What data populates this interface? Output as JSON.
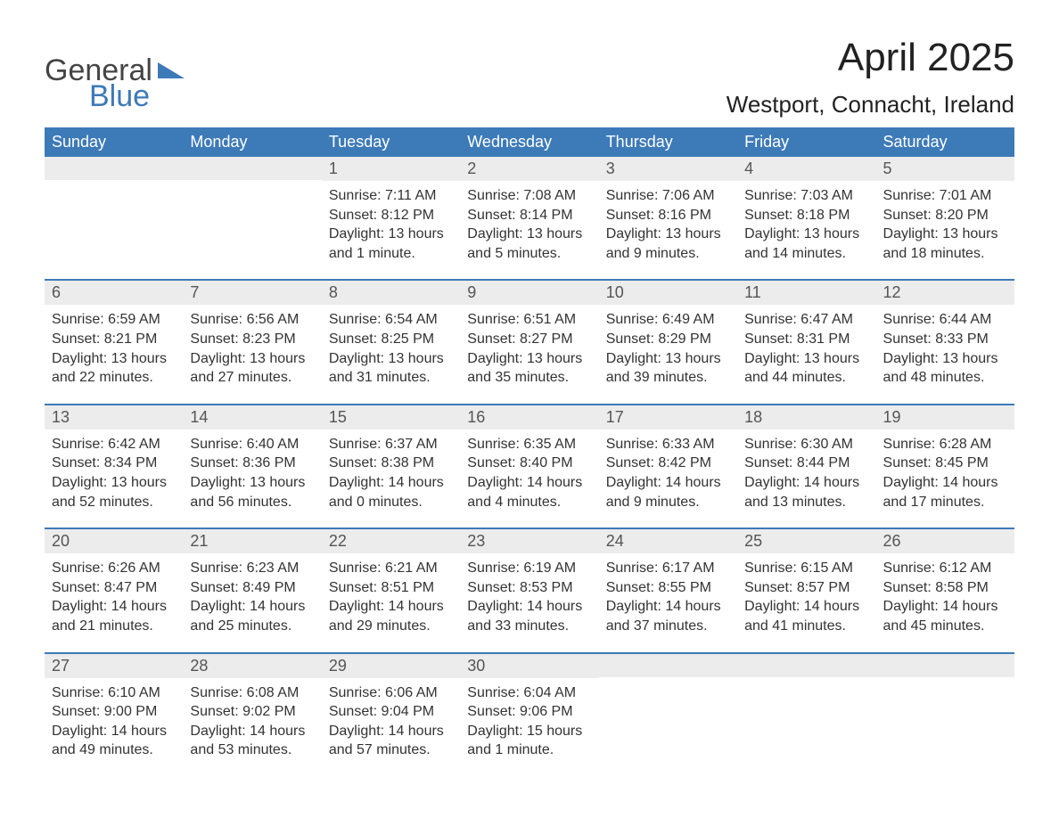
{
  "logo": {
    "word1": "General",
    "word2": "Blue"
  },
  "title": "April 2025",
  "location": "Westport, Connacht, Ireland",
  "colors": {
    "brand_blue": "#3d7ab8",
    "header_text": "#ffffff",
    "daynum_bg": "#ececec",
    "body_text": "#333333",
    "title_text": "#222222",
    "page_bg": "#ffffff"
  },
  "typography": {
    "month_title_fontsize": 44,
    "location_fontsize": 26,
    "dow_fontsize": 18,
    "daynum_fontsize": 18,
    "body_fontsize": 16,
    "logo_fontsize": 34
  },
  "days_of_week": [
    "Sunday",
    "Monday",
    "Tuesday",
    "Wednesday",
    "Thursday",
    "Friday",
    "Saturday"
  ],
  "weeks": [
    [
      null,
      null,
      {
        "n": "1",
        "sunrise": "Sunrise: 7:11 AM",
        "sunset": "Sunset: 8:12 PM",
        "daylight": "Daylight: 13 hours and 1 minute."
      },
      {
        "n": "2",
        "sunrise": "Sunrise: 7:08 AM",
        "sunset": "Sunset: 8:14 PM",
        "daylight": "Daylight: 13 hours and 5 minutes."
      },
      {
        "n": "3",
        "sunrise": "Sunrise: 7:06 AM",
        "sunset": "Sunset: 8:16 PM",
        "daylight": "Daylight: 13 hours and 9 minutes."
      },
      {
        "n": "4",
        "sunrise": "Sunrise: 7:03 AM",
        "sunset": "Sunset: 8:18 PM",
        "daylight": "Daylight: 13 hours and 14 minutes."
      },
      {
        "n": "5",
        "sunrise": "Sunrise: 7:01 AM",
        "sunset": "Sunset: 8:20 PM",
        "daylight": "Daylight: 13 hours and 18 minutes."
      }
    ],
    [
      {
        "n": "6",
        "sunrise": "Sunrise: 6:59 AM",
        "sunset": "Sunset: 8:21 PM",
        "daylight": "Daylight: 13 hours and 22 minutes."
      },
      {
        "n": "7",
        "sunrise": "Sunrise: 6:56 AM",
        "sunset": "Sunset: 8:23 PM",
        "daylight": "Daylight: 13 hours and 27 minutes."
      },
      {
        "n": "8",
        "sunrise": "Sunrise: 6:54 AM",
        "sunset": "Sunset: 8:25 PM",
        "daylight": "Daylight: 13 hours and 31 minutes."
      },
      {
        "n": "9",
        "sunrise": "Sunrise: 6:51 AM",
        "sunset": "Sunset: 8:27 PM",
        "daylight": "Daylight: 13 hours and 35 minutes."
      },
      {
        "n": "10",
        "sunrise": "Sunrise: 6:49 AM",
        "sunset": "Sunset: 8:29 PM",
        "daylight": "Daylight: 13 hours and 39 minutes."
      },
      {
        "n": "11",
        "sunrise": "Sunrise: 6:47 AM",
        "sunset": "Sunset: 8:31 PM",
        "daylight": "Daylight: 13 hours and 44 minutes."
      },
      {
        "n": "12",
        "sunrise": "Sunrise: 6:44 AM",
        "sunset": "Sunset: 8:33 PM",
        "daylight": "Daylight: 13 hours and 48 minutes."
      }
    ],
    [
      {
        "n": "13",
        "sunrise": "Sunrise: 6:42 AM",
        "sunset": "Sunset: 8:34 PM",
        "daylight": "Daylight: 13 hours and 52 minutes."
      },
      {
        "n": "14",
        "sunrise": "Sunrise: 6:40 AM",
        "sunset": "Sunset: 8:36 PM",
        "daylight": "Daylight: 13 hours and 56 minutes."
      },
      {
        "n": "15",
        "sunrise": "Sunrise: 6:37 AM",
        "sunset": "Sunset: 8:38 PM",
        "daylight": "Daylight: 14 hours and 0 minutes."
      },
      {
        "n": "16",
        "sunrise": "Sunrise: 6:35 AM",
        "sunset": "Sunset: 8:40 PM",
        "daylight": "Daylight: 14 hours and 4 minutes."
      },
      {
        "n": "17",
        "sunrise": "Sunrise: 6:33 AM",
        "sunset": "Sunset: 8:42 PM",
        "daylight": "Daylight: 14 hours and 9 minutes."
      },
      {
        "n": "18",
        "sunrise": "Sunrise: 6:30 AM",
        "sunset": "Sunset: 8:44 PM",
        "daylight": "Daylight: 14 hours and 13 minutes."
      },
      {
        "n": "19",
        "sunrise": "Sunrise: 6:28 AM",
        "sunset": "Sunset: 8:45 PM",
        "daylight": "Daylight: 14 hours and 17 minutes."
      }
    ],
    [
      {
        "n": "20",
        "sunrise": "Sunrise: 6:26 AM",
        "sunset": "Sunset: 8:47 PM",
        "daylight": "Daylight: 14 hours and 21 minutes."
      },
      {
        "n": "21",
        "sunrise": "Sunrise: 6:23 AM",
        "sunset": "Sunset: 8:49 PM",
        "daylight": "Daylight: 14 hours and 25 minutes."
      },
      {
        "n": "22",
        "sunrise": "Sunrise: 6:21 AM",
        "sunset": "Sunset: 8:51 PM",
        "daylight": "Daylight: 14 hours and 29 minutes."
      },
      {
        "n": "23",
        "sunrise": "Sunrise: 6:19 AM",
        "sunset": "Sunset: 8:53 PM",
        "daylight": "Daylight: 14 hours and 33 minutes."
      },
      {
        "n": "24",
        "sunrise": "Sunrise: 6:17 AM",
        "sunset": "Sunset: 8:55 PM",
        "daylight": "Daylight: 14 hours and 37 minutes."
      },
      {
        "n": "25",
        "sunrise": "Sunrise: 6:15 AM",
        "sunset": "Sunset: 8:57 PM",
        "daylight": "Daylight: 14 hours and 41 minutes."
      },
      {
        "n": "26",
        "sunrise": "Sunrise: 6:12 AM",
        "sunset": "Sunset: 8:58 PM",
        "daylight": "Daylight: 14 hours and 45 minutes."
      }
    ],
    [
      {
        "n": "27",
        "sunrise": "Sunrise: 6:10 AM",
        "sunset": "Sunset: 9:00 PM",
        "daylight": "Daylight: 14 hours and 49 minutes."
      },
      {
        "n": "28",
        "sunrise": "Sunrise: 6:08 AM",
        "sunset": "Sunset: 9:02 PM",
        "daylight": "Daylight: 14 hours and 53 minutes."
      },
      {
        "n": "29",
        "sunrise": "Sunrise: 6:06 AM",
        "sunset": "Sunset: 9:04 PM",
        "daylight": "Daylight: 14 hours and 57 minutes."
      },
      {
        "n": "30",
        "sunrise": "Sunrise: 6:04 AM",
        "sunset": "Sunset: 9:06 PM",
        "daylight": "Daylight: 15 hours and 1 minute."
      },
      null,
      null,
      null
    ]
  ]
}
